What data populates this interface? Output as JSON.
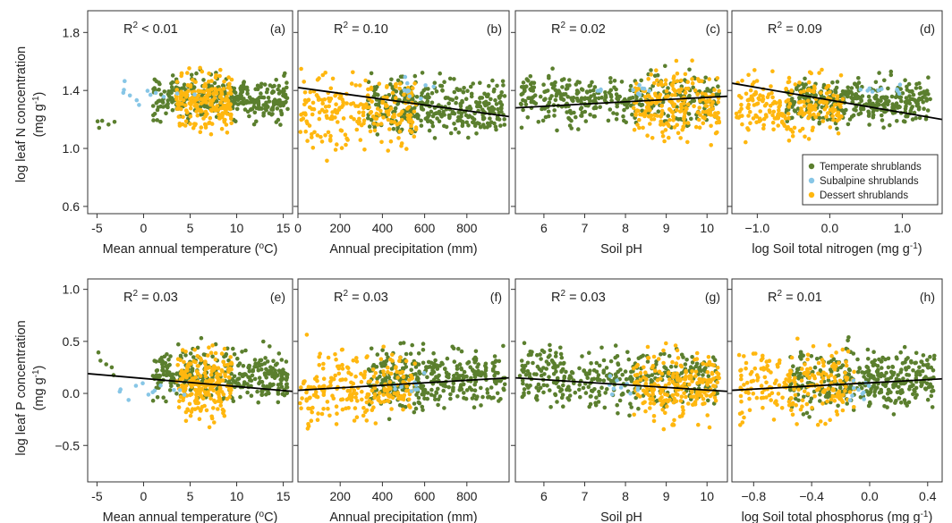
{
  "colors": {
    "temperate": "#5b7f2e",
    "subalpine": "#87c6e6",
    "desert": "#ffb70f",
    "regression": "#000000",
    "frame": "#333333"
  },
  "legend": {
    "placement": "bottom-right of panel (d)",
    "items": [
      {
        "key": "temperate",
        "label": "Temperate shrublands"
      },
      {
        "key": "subalpine",
        "label": "Subalpine shrublands"
      },
      {
        "key": "desert",
        "label": "Dessert shrublands"
      }
    ]
  },
  "rows": [
    {
      "ylabel_line1": "log leaf N concentration",
      "ylabel_line2": "(mg g",
      "ylabel_sup": "-1",
      "ylabel_close": ")"
    },
    {
      "ylabel_line1": "log leaf P concentration",
      "ylabel_line2": "(mg g",
      "ylabel_sup": "-1",
      "ylabel_close": ")"
    }
  ],
  "chart_data": [
    {
      "id": "a",
      "letter": "(a)",
      "type": "scatter",
      "r2": {
        "base": "R",
        "sup": "2",
        "text": " < 0.01"
      },
      "xlabel": "Mean annual temperature (",
      "xlabel_sup": "o",
      "xlabel_end": "C)",
      "xlim": [
        -6,
        16
      ],
      "xticks": [
        -5,
        0,
        5,
        10,
        15
      ],
      "ylim": [
        0.55,
        1.95
      ],
      "yticks": [
        0.6,
        1.0,
        1.4,
        1.8
      ],
      "ytick_labels": [
        "0.6",
        "1.0",
        "1.4",
        "1.8"
      ],
      "show_yticks": true,
      "regression": null,
      "clouds": [
        {
          "group": "temperate",
          "x": [
            1,
            15.5
          ],
          "y": [
            1.12,
            1.58
          ],
          "n": 340
        },
        {
          "group": "temperate",
          "x": [
            -5,
            -3
          ],
          "y": [
            1.05,
            1.3
          ],
          "n": 5
        },
        {
          "group": "desert",
          "x": [
            3.5,
            9.5
          ],
          "y": [
            1.0,
            1.62
          ],
          "n": 220
        },
        {
          "group": "subalpine",
          "x": [
            -3,
            6
          ],
          "y": [
            1.25,
            1.55
          ],
          "n": 12
        }
      ]
    },
    {
      "id": "b",
      "letter": "(b)",
      "type": "scatter",
      "r2": {
        "base": "R",
        "sup": "2",
        "text": " = 0.10"
      },
      "xlabel": "Annual precipitation (mm)",
      "xlabel_sup": "",
      "xlabel_end": "",
      "xlim": [
        0,
        1000
      ],
      "xticks": [
        0,
        200,
        400,
        600,
        800
      ],
      "ylim": [
        0.55,
        1.95
      ],
      "yticks": [
        0.6,
        1.0,
        1.4,
        1.8
      ],
      "ytick_labels": [
        "0.6",
        "1.0",
        "1.4",
        "1.8"
      ],
      "show_yticks": false,
      "regression": {
        "x": [
          0,
          1000
        ],
        "y": [
          1.42,
          1.22
        ]
      },
      "clouds": [
        {
          "group": "temperate",
          "x": [
            330,
            980
          ],
          "y": [
            1.0,
            1.58
          ],
          "n": 360
        },
        {
          "group": "desert",
          "x": [
            10,
            560
          ],
          "y": [
            0.85,
            1.66
          ],
          "n": 230
        },
        {
          "group": "subalpine",
          "x": [
            450,
            650
          ],
          "y": [
            1.3,
            1.5
          ],
          "n": 10
        }
      ]
    },
    {
      "id": "c",
      "letter": "(c)",
      "type": "scatter",
      "r2": {
        "base": "R",
        "sup": "2",
        "text": " = 0.02"
      },
      "xlabel": "Soil pH",
      "xlabel_sup": "",
      "xlabel_end": "",
      "xlim": [
        5.3,
        10.5
      ],
      "xticks": [
        6,
        7,
        8,
        9,
        10
      ],
      "ylim": [
        0.55,
        1.95
      ],
      "yticks": [
        0.6,
        1.0,
        1.4,
        1.8
      ],
      "ytick_labels": [
        "0.6",
        "1.0",
        "1.4",
        "1.8"
      ],
      "show_yticks": false,
      "regression": {
        "x": [
          5.3,
          10.5
        ],
        "y": [
          1.28,
          1.36
        ]
      },
      "clouds": [
        {
          "group": "temperate",
          "x": [
            5.4,
            10.3
          ],
          "y": [
            1.08,
            1.6
          ],
          "n": 380
        },
        {
          "group": "desert",
          "x": [
            8.2,
            10.3
          ],
          "y": [
            0.95,
            1.64
          ],
          "n": 230
        },
        {
          "group": "subalpine",
          "x": [
            7.3,
            8.6
          ],
          "y": [
            1.3,
            1.5
          ],
          "n": 10
        }
      ]
    },
    {
      "id": "d",
      "letter": "(d)",
      "type": "scatter",
      "r2": {
        "base": "R",
        "sup": "2",
        "text": " = 0.09"
      },
      "xlabel": "log Soil total nitrogen (mg g",
      "xlabel_sup": "-1",
      "xlabel_end": ")",
      "xlim": [
        -1.35,
        1.55
      ],
      "xticks": [
        -1.0,
        0.0,
        1.0
      ],
      "xtick_labels": [
        "−1.0",
        "0.0",
        "1.0"
      ],
      "ylim": [
        0.55,
        1.95
      ],
      "yticks": [
        0.6,
        1.0,
        1.4,
        1.8
      ],
      "ytick_labels": [
        "0.6",
        "1.0",
        "1.4",
        "1.8"
      ],
      "show_yticks": false,
      "regression": {
        "x": [
          -1.35,
          1.55
        ],
        "y": [
          1.45,
          1.2
        ]
      },
      "clouds": [
        {
          "group": "temperate",
          "x": [
            -0.6,
            1.4
          ],
          "y": [
            1.1,
            1.55
          ],
          "n": 380
        },
        {
          "group": "desert",
          "x": [
            -1.3,
            0.2
          ],
          "y": [
            0.95,
            1.64
          ],
          "n": 220
        },
        {
          "group": "subalpine",
          "x": [
            0.2,
            1.0
          ],
          "y": [
            1.3,
            1.5
          ],
          "n": 10
        }
      ]
    },
    {
      "id": "e",
      "letter": "(e)",
      "type": "scatter",
      "r2": {
        "base": "R",
        "sup": "2",
        "text": " = 0.03"
      },
      "xlabel": "Mean annual temperature (",
      "xlabel_sup": "o",
      "xlabel_end": "C)",
      "xlim": [
        -6,
        16
      ],
      "xticks": [
        -5,
        0,
        5,
        10,
        15
      ],
      "ylim": [
        -0.85,
        1.1
      ],
      "yticks": [
        -0.5,
        0.0,
        0.5,
        1.0
      ],
      "ytick_labels": [
        "−0.5",
        "0.0",
        "0.5",
        "1.0"
      ],
      "show_yticks": true,
      "regression": {
        "x": [
          -6,
          16
        ],
        "y": [
          0.19,
          0.02
        ]
      },
      "clouds": [
        {
          "group": "temperate",
          "x": [
            1,
            15.5
          ],
          "y": [
            -0.2,
            0.55
          ],
          "n": 340
        },
        {
          "group": "temperate",
          "x": [
            -5,
            -3
          ],
          "y": [
            0.1,
            0.68
          ],
          "n": 5
        },
        {
          "group": "desert",
          "x": [
            3.5,
            9.5
          ],
          "y": [
            -0.4,
            0.6
          ],
          "n": 220
        },
        {
          "group": "subalpine",
          "x": [
            -3,
            6
          ],
          "y": [
            -0.15,
            0.2
          ],
          "n": 12
        }
      ]
    },
    {
      "id": "f",
      "letter": "(f)",
      "type": "scatter",
      "r2": {
        "base": "R",
        "sup": "2",
        "text": " = 0.03"
      },
      "xlabel": "Annual precipitation (mm)",
      "xlabel_sup": "",
      "xlabel_end": "",
      "xlim": [
        0,
        1000
      ],
      "xticks": [
        200,
        400,
        600,
        800
      ],
      "ylim": [
        -0.85,
        1.1
      ],
      "yticks": [
        -0.5,
        0.0,
        0.5,
        1.0
      ],
      "ytick_labels": [
        "−0.5",
        "0.0",
        "0.5",
        "1.0"
      ],
      "show_yticks": false,
      "regression": {
        "x": [
          0,
          1000
        ],
        "y": [
          0.03,
          0.15
        ]
      },
      "clouds": [
        {
          "group": "temperate",
          "x": [
            330,
            980
          ],
          "y": [
            -0.3,
            0.58
          ],
          "n": 360
        },
        {
          "group": "desert",
          "x": [
            10,
            560
          ],
          "y": [
            -0.45,
            0.6
          ],
          "n": 230
        },
        {
          "group": "subalpine",
          "x": [
            450,
            650
          ],
          "y": [
            -0.1,
            0.2
          ],
          "n": 10
        }
      ]
    },
    {
      "id": "g",
      "letter": "(g)",
      "type": "scatter",
      "r2": {
        "base": "R",
        "sup": "2",
        "text": " = 0.03"
      },
      "xlabel": "Soil pH",
      "xlabel_sup": "",
      "xlabel_end": "",
      "xlim": [
        5.3,
        10.5
      ],
      "xticks": [
        6,
        7,
        8,
        9,
        10
      ],
      "ylim": [
        -0.85,
        1.1
      ],
      "yticks": [
        -0.5,
        0.0,
        0.5,
        1.0
      ],
      "ytick_labels": [
        "−0.5",
        "0.0",
        "0.5",
        "1.0"
      ],
      "show_yticks": false,
      "regression": {
        "x": [
          5.3,
          10.5
        ],
        "y": [
          0.15,
          0.02
        ]
      },
      "clouds": [
        {
          "group": "temperate",
          "x": [
            5.4,
            10.3
          ],
          "y": [
            -0.3,
            0.58
          ],
          "n": 380
        },
        {
          "group": "desert",
          "x": [
            8.2,
            10.3
          ],
          "y": [
            -0.45,
            0.6
          ],
          "n": 230
        },
        {
          "group": "subalpine",
          "x": [
            7.3,
            8.6
          ],
          "y": [
            -0.1,
            0.2
          ],
          "n": 10
        }
      ]
    },
    {
      "id": "h",
      "letter": "(h)",
      "type": "scatter",
      "r2": {
        "base": "R",
        "sup": "2",
        "text": " = 0.01"
      },
      "xlabel": "log Soil total phosphorus (mg g",
      "xlabel_sup": "-1",
      "xlabel_end": ")",
      "xlim": [
        -0.95,
        0.5
      ],
      "xticks": [
        -0.8,
        -0.4,
        0.0,
        0.4
      ],
      "xtick_labels": [
        "−0.8",
        "−0.4",
        "0.0",
        "0.4"
      ],
      "ylim": [
        -0.85,
        1.1
      ],
      "yticks": [
        -0.5,
        0.0,
        0.5,
        1.0
      ],
      "ytick_labels": [
        "−0.5",
        "0.0",
        "0.5",
        "1.0"
      ],
      "show_yticks": false,
      "regression": {
        "x": [
          -0.95,
          0.5
        ],
        "y": [
          0.03,
          0.14
        ]
      },
      "clouds": [
        {
          "group": "temperate",
          "x": [
            -0.55,
            0.45
          ],
          "y": [
            -0.3,
            0.58
          ],
          "n": 380
        },
        {
          "group": "desert",
          "x": [
            -0.9,
            -0.1
          ],
          "y": [
            -0.45,
            0.6
          ],
          "n": 220
        },
        {
          "group": "subalpine",
          "x": [
            -0.15,
            0.05
          ],
          "y": [
            -0.15,
            0.2
          ],
          "n": 10
        }
      ]
    }
  ]
}
